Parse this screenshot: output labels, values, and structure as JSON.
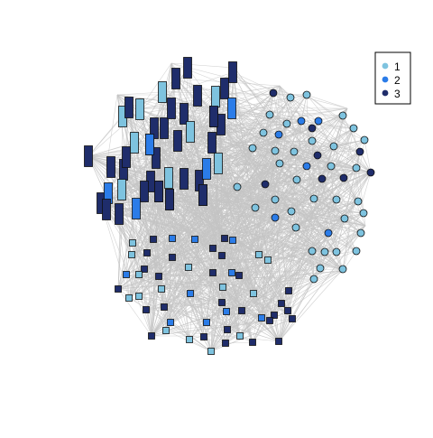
{
  "chart_data": {
    "type": "network",
    "title": "",
    "legend": {
      "position": "top-right",
      "entries": [
        {
          "label": "1",
          "color": "#7ec3df"
        },
        {
          "label": "2",
          "color": "#2b7ce8"
        },
        {
          "label": "3",
          "color": "#1f2d6b"
        }
      ]
    },
    "edge_color": "#c4c4c4",
    "node_border": "#111111",
    "groups": [
      {
        "name": "rectangles",
        "shape": "tall-rectangle",
        "count": 48
      },
      {
        "name": "circles",
        "shape": "circle",
        "count": 46
      },
      {
        "name": "squares",
        "shape": "square",
        "count": 48
      }
    ]
  }
}
